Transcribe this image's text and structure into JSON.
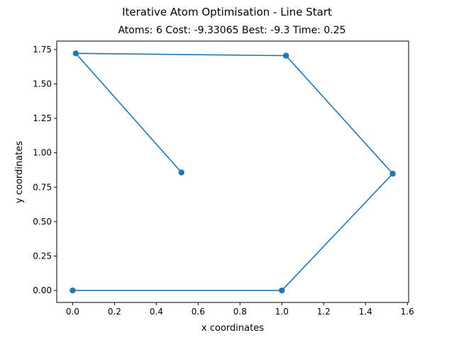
{
  "chart_data": {
    "type": "line",
    "title": "Iterative Atom Optimisation - Line Start",
    "subtitle": "Atoms: 6 Cost: -9.33065 Best: -9.3 Time: 0.25",
    "xlabel": "x coordinates",
    "ylabel": "y coordinates",
    "xlim": [
      -0.076,
      1.606
    ],
    "ylim": [
      -0.087,
      1.811
    ],
    "xticks": [
      "0.0",
      "0.2",
      "0.4",
      "0.6",
      "0.8",
      "1.0",
      "1.2",
      "1.4",
      "1.6"
    ],
    "yticks": [
      "0.00",
      "0.25",
      "0.50",
      "0.75",
      "1.00",
      "1.25",
      "1.50",
      "1.75"
    ],
    "grid": false,
    "color": "#1f77b4",
    "series": [
      {
        "x": [
          0.0,
          1.0,
          1.53,
          1.02,
          0.015,
          0.52
        ],
        "y": [
          0.0,
          0.0,
          0.848,
          1.705,
          1.722,
          0.857
        ]
      }
    ]
  }
}
